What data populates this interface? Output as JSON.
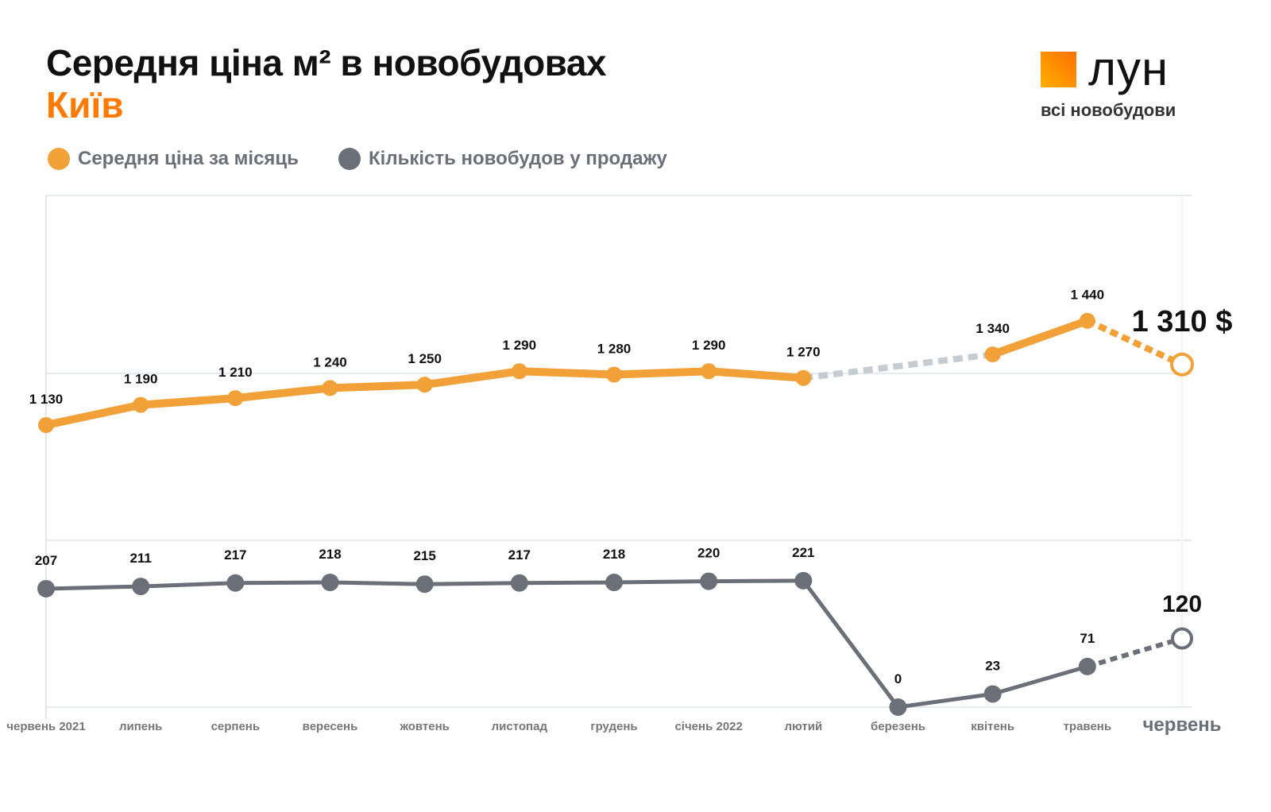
{
  "header": {
    "title": "Середня ціна м² в новобудовах",
    "subtitle": "Київ"
  },
  "logo": {
    "name": "лун",
    "tagline": "всі новобудови",
    "colors": [
      "#ff7000",
      "#ffb000"
    ]
  },
  "legend": [
    {
      "label": "Середня ціна за місяць",
      "color": "#f2a038"
    },
    {
      "label": "Кількість новобудов у продажу",
      "color": "#6b6f78"
    }
  ],
  "chart_data": {
    "type": "line",
    "categories": [
      "червень 2021",
      "липень",
      "серпень",
      "вересень",
      "жовтень",
      "листопад",
      "грудень",
      "січень 2022",
      "лютий",
      "березень",
      "квітень",
      "травень",
      "червень"
    ],
    "series": [
      {
        "name": "Середня ціна за місяць",
        "color": "#f2a038",
        "values": [
          1130,
          1190,
          1210,
          1240,
          1250,
          1290,
          1280,
          1290,
          1270,
          null,
          1340,
          1440,
          1310
        ],
        "labels": [
          "1 130",
          "1 190",
          "1 210",
          "1 240",
          "1 250",
          "1 290",
          "1 280",
          "1 290",
          "1 270",
          "",
          "1 340",
          "1 440",
          "1 310 $"
        ]
      },
      {
        "name": "Кількість новобудов у продажу",
        "color": "#6b6f78",
        "values": [
          207,
          211,
          217,
          218,
          215,
          217,
          218,
          220,
          221,
          0,
          23,
          71,
          120
        ],
        "labels": [
          "207",
          "211",
          "217",
          "218",
          "215",
          "217",
          "218",
          "220",
          "221",
          "0",
          "23",
          "71",
          "120"
        ]
      }
    ],
    "grid": true,
    "legend_position": "top-left"
  }
}
